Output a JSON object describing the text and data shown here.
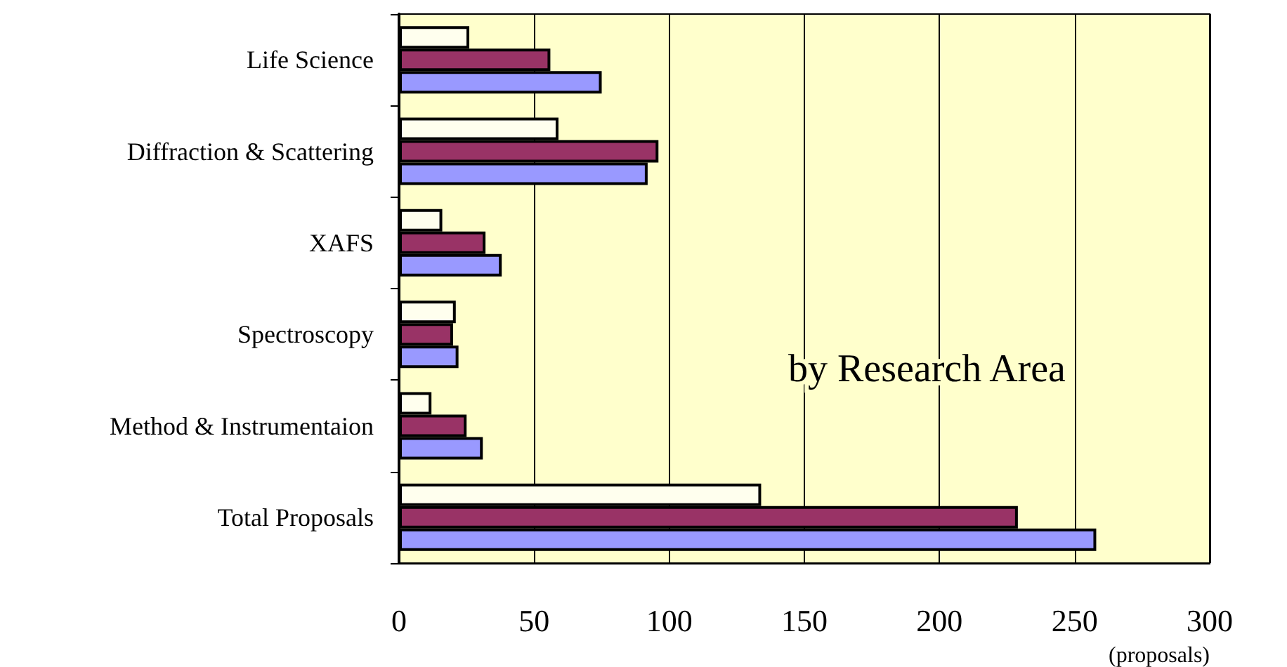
{
  "chart_data": {
    "type": "bar",
    "orientation": "horizontal",
    "xlabel": "(proposals)",
    "annotations": [
      "by Research Area"
    ],
    "categories": [
      "Life Science",
      "Diffraction & Scattering",
      "XAFS",
      "Spectroscopy",
      "Method & Instrumentaion",
      "Total Proposals"
    ],
    "series": [
      {
        "color": "#ffffee",
        "values": [
          26,
          59,
          16,
          21,
          12,
          134
        ]
      },
      {
        "color": "#993366",
        "values": [
          56,
          96,
          32,
          20,
          25,
          229
        ]
      },
      {
        "color": "#9999ff",
        "values": [
          75,
          92,
          38,
          22,
          31,
          258
        ]
      }
    ],
    "xlim": [
      0,
      300
    ],
    "xticks": [
      0,
      50,
      100,
      150,
      200,
      250,
      300
    ],
    "grid": "x"
  }
}
